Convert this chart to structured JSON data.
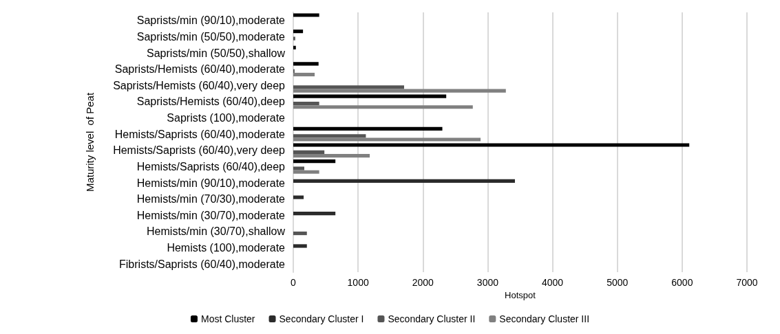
{
  "chart_data": {
    "type": "bar",
    "orientation": "horizontal",
    "xlabel": "Hotspot",
    "ylabel": "Maturity level  of Peat",
    "categories": [
      "Saprists/min (90/10),moderate",
      "Saprists/min (50/50),moderate",
      "Saprists/min (50/50),shallow",
      "Saprists/Hemists (60/40),moderate",
      "Saprists/Hemists (60/40),very deep",
      "Saprists/Hemists (60/40),deep",
      "Saprists (100),moderate",
      "Hemists/Saprists (60/40),moderate",
      "Hemists/Saprists (60/40),very deep",
      "Hemists/Saprists (60/40),deep",
      "Hemists/min (90/10),moderate",
      "Hemists/min (70/30),moderate",
      "Hemists/min (30/70),moderate",
      "Hemists/min (30/70),shallow",
      "Hemists (100),moderate",
      "Fibrists/Saprists (60/40),moderate"
    ],
    "series": [
      {
        "name": "Most Cluster",
        "color": "#000000",
        "values": [
          400,
          150,
          40,
          390,
          null,
          2360,
          null,
          2300,
          6110,
          650,
          null,
          null,
          null,
          null,
          null,
          null
        ]
      },
      {
        "name": "Secondary Cluster I",
        "color": "#2b2b2b",
        "values": [
          null,
          null,
          null,
          null,
          null,
          null,
          null,
          null,
          null,
          null,
          3420,
          160,
          650,
          null,
          210,
          null
        ]
      },
      {
        "name": "Secondary Cluster II",
        "color": "#555555",
        "values": [
          null,
          30,
          null,
          20,
          1710,
          400,
          null,
          1120,
          480,
          170,
          null,
          null,
          null,
          210,
          null,
          null
        ]
      },
      {
        "name": "Secondary Cluster III",
        "color": "#808080",
        "values": [
          null,
          null,
          null,
          330,
          3280,
          2770,
          null,
          2890,
          1180,
          400,
          null,
          null,
          null,
          null,
          null,
          null
        ]
      }
    ],
    "xlim": [
      0,
      7000
    ],
    "xticks": [
      0,
      1000,
      2000,
      3000,
      4000,
      5000,
      6000,
      7000
    ],
    "grid": "x",
    "legend": "bottom"
  }
}
